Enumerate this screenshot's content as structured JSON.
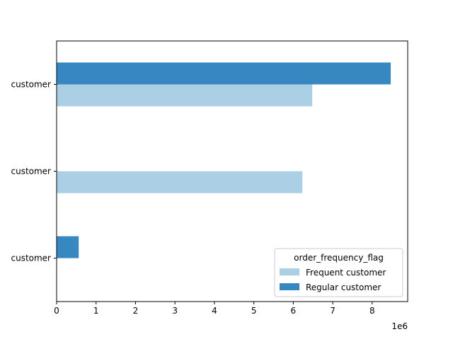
{
  "chart_data": {
    "type": "bar",
    "orientation": "horizontal",
    "categories": [
      "customer",
      "customer",
      "customer"
    ],
    "series": [
      {
        "name": "Frequent customer",
        "color": "#abd0e6",
        "values": [
          6480000,
          6230000,
          0
        ]
      },
      {
        "name": "Regular customer",
        "color": "#3787c0",
        "values": [
          8470000,
          0,
          560000
        ]
      }
    ],
    "xlim": [
      0,
      8900000
    ],
    "xticks": [
      0,
      1000000,
      2000000,
      3000000,
      4000000,
      5000000,
      6000000,
      7000000,
      8000000
    ],
    "xtick_labels": [
      "0",
      "1",
      "2",
      "3",
      "4",
      "5",
      "6",
      "7",
      "8"
    ],
    "x_offset_label": "1e6",
    "grid": false,
    "legend": {
      "title": "order_frequency_flag",
      "position": "lower-right"
    }
  }
}
